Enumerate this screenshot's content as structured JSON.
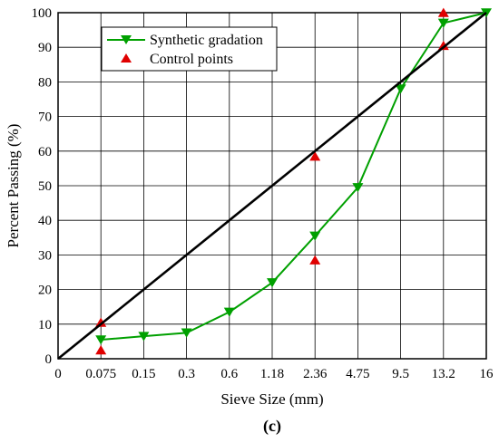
{
  "chart_data": {
    "type": "line",
    "subfigure_label": "(c)",
    "xlabel": "Sieve Size (mm)",
    "ylabel": "Percent Passing (%)",
    "x_tick_labels": [
      "0",
      "0.075",
      "0.15",
      "0.3",
      "0.6",
      "1.18",
      "2.36",
      "4.75",
      "9.5",
      "13.2",
      "16"
    ],
    "y_ticks": [
      0,
      10,
      20,
      30,
      40,
      50,
      60,
      70,
      80,
      90,
      100
    ],
    "ylim": [
      0,
      100
    ],
    "grid": true,
    "legend_position": "top-left",
    "series": [
      {
        "name": "Synthetic gradation",
        "kind": "line-marker",
        "marker": "triangle-down",
        "color": "#00a000",
        "points": [
          {
            "x": "0.075",
            "y": 5.5
          },
          {
            "x": "0.15",
            "y": 6.5
          },
          {
            "x": "0.3",
            "y": 7.5
          },
          {
            "x": "0.6",
            "y": 13.5
          },
          {
            "x": "1.18",
            "y": 22
          },
          {
            "x": "2.36",
            "y": 35.5
          },
          {
            "x": "4.75",
            "y": 49.5
          },
          {
            "x": "9.5",
            "y": 78
          },
          {
            "x": "13.2",
            "y": 97
          },
          {
            "x": "16",
            "y": 100
          }
        ]
      },
      {
        "name": "Control points",
        "kind": "markers",
        "marker": "triangle-up",
        "color": "#e00000",
        "points": [
          {
            "x": "0.075",
            "y": 2.5
          },
          {
            "x": "0.075",
            "y": 10.5
          },
          {
            "x": "2.36",
            "y": 28.5
          },
          {
            "x": "2.36",
            "y": 58.5
          },
          {
            "x": "13.2",
            "y": 90.5
          },
          {
            "x": "13.2",
            "y": 100
          }
        ]
      },
      {
        "kind": "reference-line",
        "color": "#000000",
        "points": [
          {
            "x": "0",
            "y": 0
          },
          {
            "x": "16",
            "y": 100
          }
        ]
      }
    ]
  }
}
